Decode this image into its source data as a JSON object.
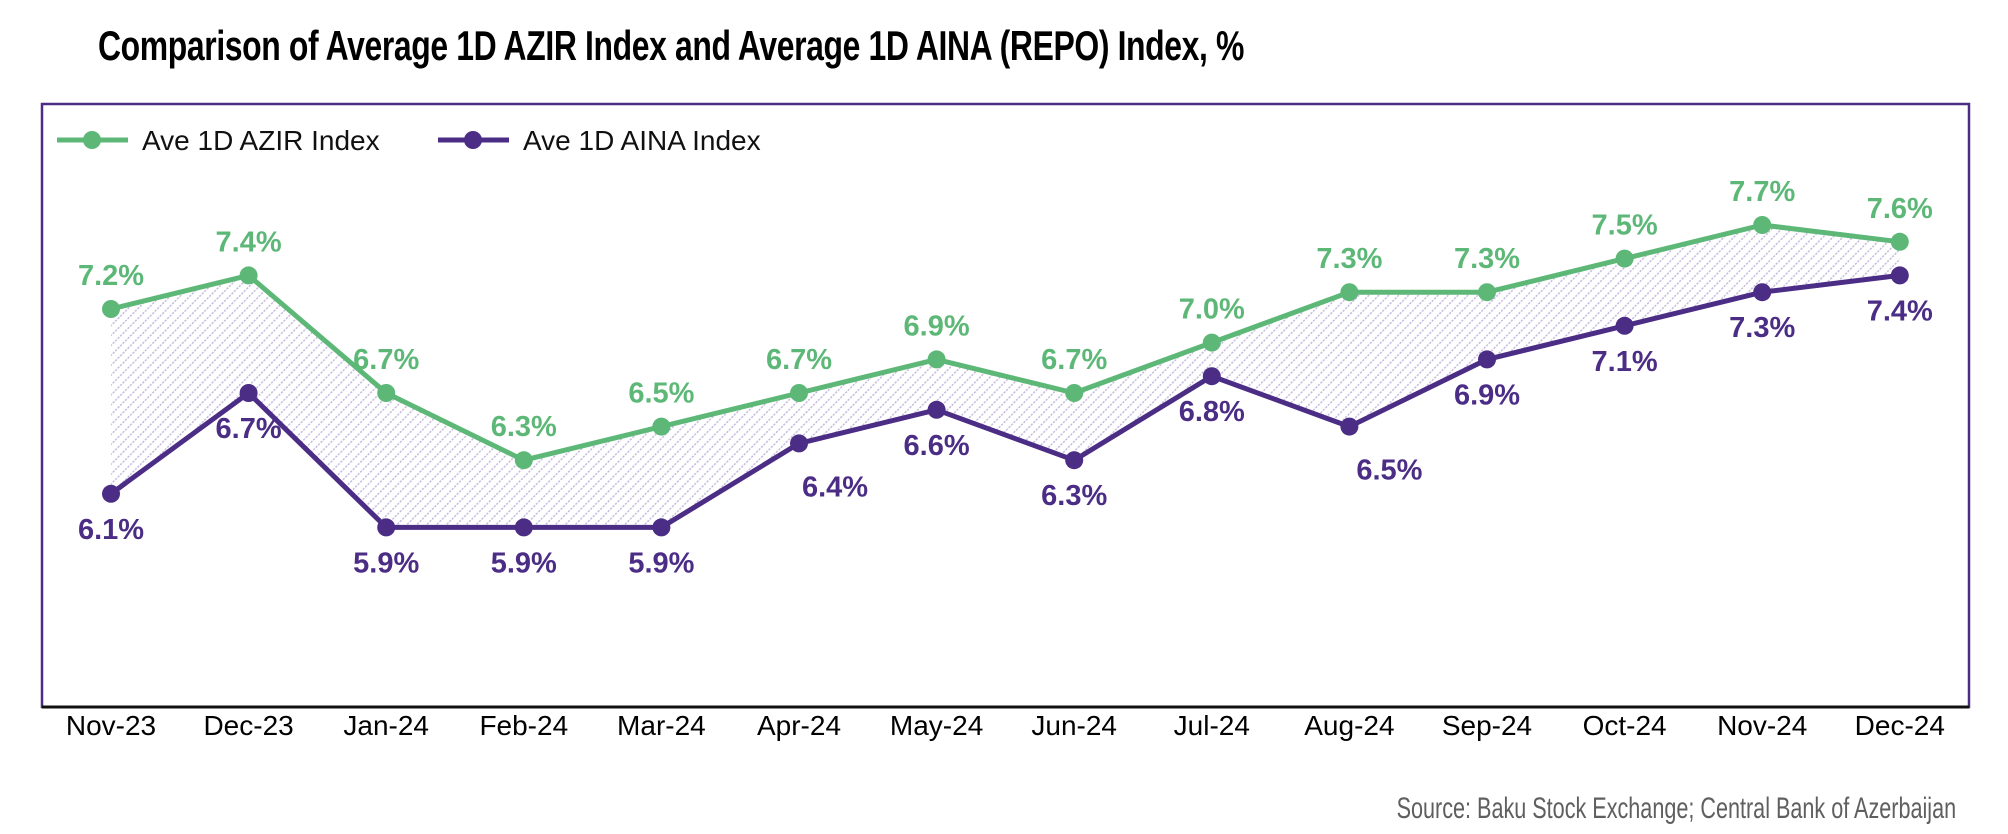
{
  "chart_data": {
    "type": "line",
    "title": "Comparison of Average 1D AZIR Index and Average 1D AINA (REPO) Index, %",
    "xlabel": "",
    "ylabel": "",
    "categories": [
      "Nov-23",
      "Dec-23",
      "Jan-24",
      "Feb-24",
      "Mar-24",
      "Apr-24",
      "May-24",
      "Jun-24",
      "Jul-24",
      "Aug-24",
      "Sep-24",
      "Oct-24",
      "Nov-24",
      "Dec-24"
    ],
    "series": [
      {
        "name": "Ave 1D AZIR Index",
        "color": "#5db878",
        "values": [
          7.2,
          7.4,
          6.7,
          6.3,
          6.5,
          6.7,
          6.9,
          6.7,
          7.0,
          7.3,
          7.3,
          7.5,
          7.7,
          7.6
        ],
        "labels": [
          "7.2%",
          "7.4%",
          "6.7%",
          "6.3%",
          "6.5%",
          "6.7%",
          "6.9%",
          "6.7%",
          "7.0%",
          "7.3%",
          "7.3%",
          "7.5%",
          "7.7%",
          "7.6%"
        ]
      },
      {
        "name": "Ave 1D AINA Index",
        "color": "#4b2d85",
        "values": [
          6.1,
          6.7,
          5.9,
          5.9,
          5.9,
          6.4,
          6.6,
          6.3,
          6.8,
          6.5,
          6.9,
          7.1,
          7.3,
          7.4
        ],
        "labels": [
          "6.1%",
          "6.7%",
          "5.9%",
          "5.9%",
          "5.9%",
          "6.4%",
          "6.6%",
          "6.3%",
          "6.8%",
          "6.5%",
          "6.9%",
          "7.1%",
          "7.3%",
          "7.4%"
        ]
      }
    ],
    "fill_between": {
      "color": "#c5bbdd",
      "pattern": "diagonal-hatch"
    },
    "ylim": [
      4.8,
      8.3
    ],
    "y_axis_visible": false,
    "grid": false,
    "legend": "top-left",
    "frame_color": "#4b2d85"
  },
  "source": "Source: Baku Stock Exchange; Central Bank of Azerbaijan"
}
